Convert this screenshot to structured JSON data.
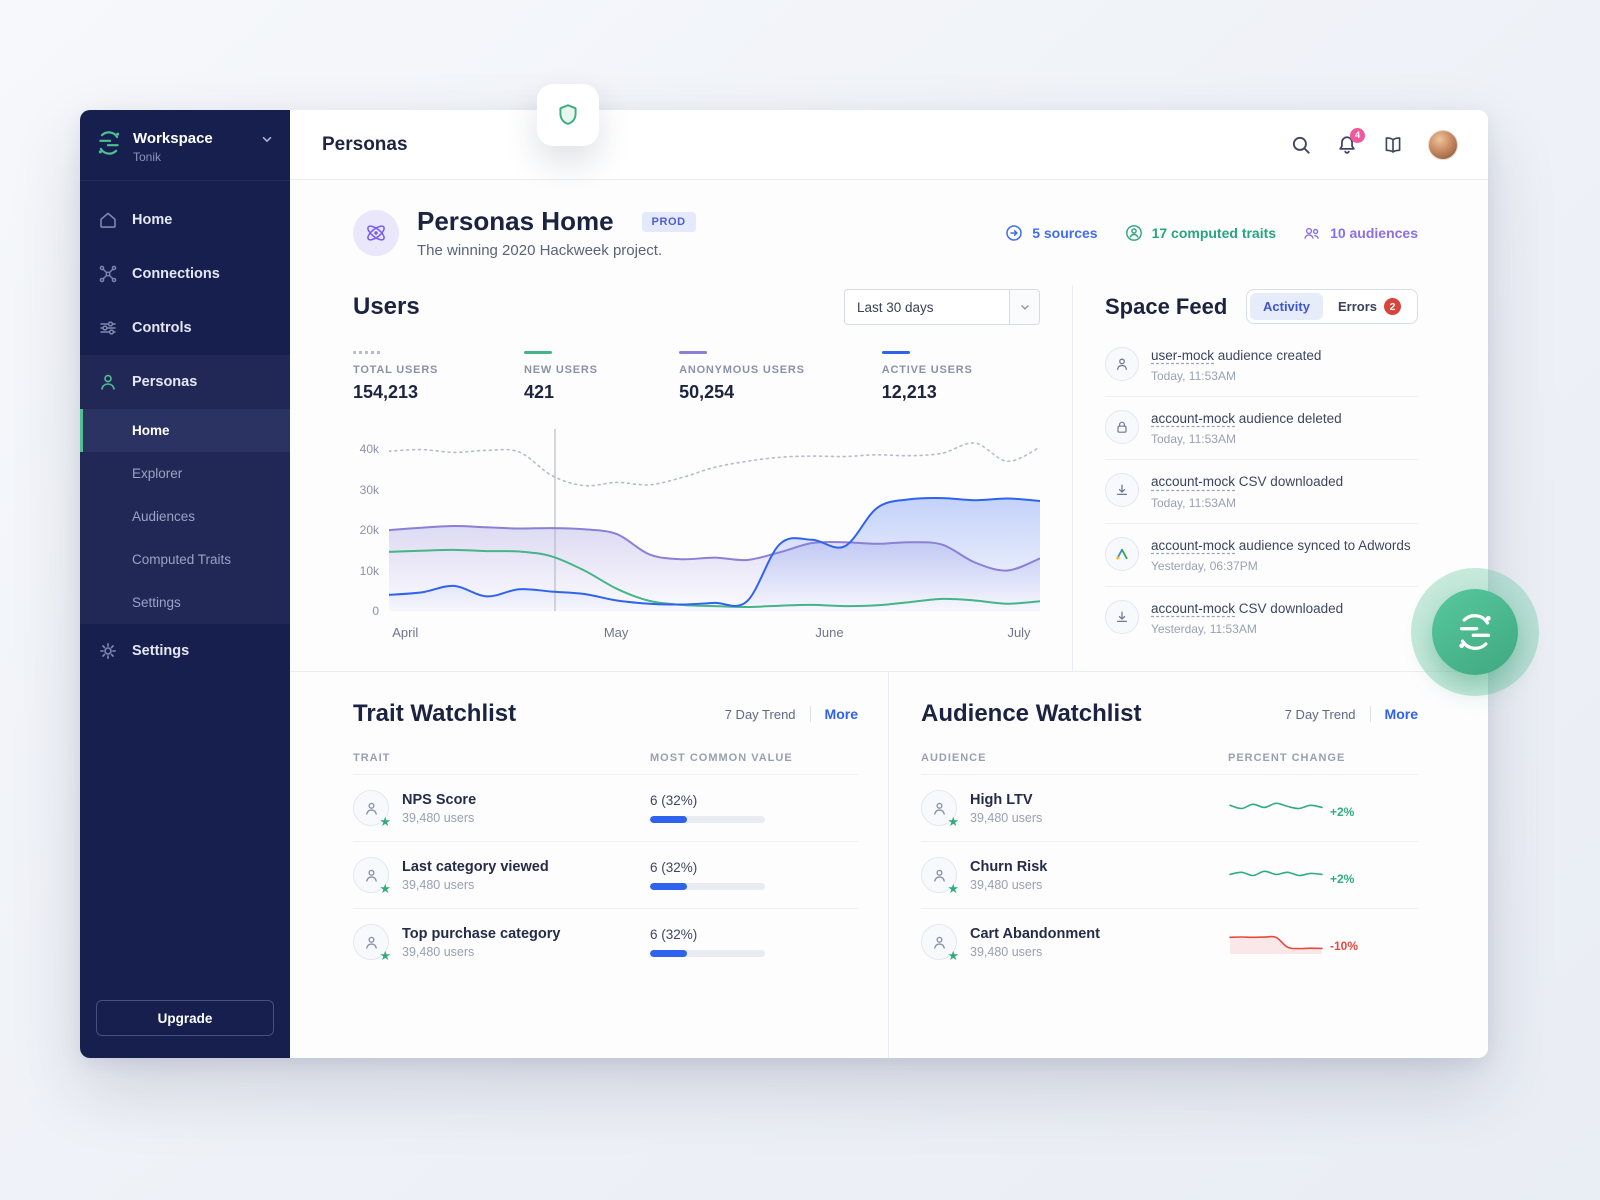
{
  "sidebar": {
    "workspace_label": "Workspace",
    "workspace_name": "Tonik",
    "nav": {
      "home": "Home",
      "connections": "Connections",
      "controls": "Controls",
      "personas": "Personas",
      "settings": "Settings"
    },
    "personas_children": {
      "home": "Home",
      "explorer": "Explorer",
      "audiences": "Audiences",
      "computed_traits": "Computed Traits",
      "settings": "Settings"
    },
    "upgrade_label": "Upgrade"
  },
  "topbar": {
    "title": "Personas",
    "notification_count": "4"
  },
  "header": {
    "title": "Personas Home",
    "env_badge": "PROD",
    "subtitle": "The winning 2020 Hackweek project.",
    "stats": [
      {
        "label": "5 sources",
        "color": "#3e6df5"
      },
      {
        "label": "17 computed traits",
        "color": "#27a57c"
      },
      {
        "label": "10 audiences",
        "color": "#8b6fe8"
      }
    ]
  },
  "users_section": {
    "title": "Users",
    "range": "Last 30 days",
    "legend": [
      {
        "label": "TOTAL USERS",
        "value": "154,213"
      },
      {
        "label": "NEW USERS",
        "value": "421"
      },
      {
        "label": "ANONYMOUS USERS",
        "value": "50,254"
      },
      {
        "label": "ACTIVE USERS",
        "value": "12,213"
      }
    ]
  },
  "chart_data": {
    "type": "line",
    "title": "Users",
    "range_selected": "Last 30 days",
    "ymax_k": 44,
    "cursor_percent": 25.5,
    "y_ticks_k": [
      [
        "40k",
        40
      ],
      [
        "30k",
        30
      ],
      [
        "20k",
        20
      ],
      [
        "10k",
        10
      ],
      [
        "0",
        0
      ]
    ],
    "x_ticks": [
      [
        "April",
        0.5
      ],
      [
        "May",
        33
      ],
      [
        "June",
        65.5
      ],
      [
        "July",
        95
      ]
    ],
    "series": [
      {
        "name": "Total users",
        "legend_value": "154,213",
        "color": "#b6bcc9",
        "dash": true,
        "fill": false,
        "values_k": [
          39.5,
          39.9,
          39.2,
          39.7,
          39.3,
          33.5,
          31.0,
          31.8,
          31.2,
          33.0,
          35.5,
          37.0,
          38.0,
          38.3,
          38.2,
          38.6,
          38.4,
          39.0,
          41.5,
          37.0,
          40.5
        ]
      },
      {
        "name": "New users",
        "legend_value": "421",
        "color": "#45b588",
        "dash": false,
        "fill": false,
        "values_k": [
          14.6,
          14.9,
          15.1,
          14.8,
          14.7,
          13.5,
          10.0,
          5.5,
          2.5,
          1.5,
          1.2,
          1.0,
          1.3,
          1.5,
          1.2,
          1.4,
          2.2,
          3.0,
          2.6,
          1.8,
          2.4
        ]
      },
      {
        "name": "Anonymous users",
        "legend_value": "50,254",
        "color": "#8b7fd7",
        "dash": false,
        "fill": true,
        "values_k": [
          20.0,
          20.6,
          21.0,
          20.7,
          20.4,
          20.5,
          20.2,
          19.0,
          14.0,
          12.8,
          13.2,
          12.6,
          14.5,
          16.8,
          17.0,
          16.6,
          17.0,
          16.4,
          12.0,
          10.0,
          13.0
        ]
      },
      {
        "name": "Active users",
        "legend_value": "12,213",
        "color": "#2f63ee",
        "dash": false,
        "fill": true,
        "values_k": [
          4.0,
          4.6,
          6.2,
          3.6,
          5.4,
          4.8,
          4.2,
          2.6,
          1.8,
          1.6,
          2.0,
          2.4,
          16.5,
          17.6,
          16.0,
          25.5,
          27.6,
          27.9,
          27.4,
          27.8,
          27.2
        ]
      }
    ]
  },
  "space_feed": {
    "title": "Space Feed",
    "tabs": [
      {
        "label": "Activity",
        "active": true
      },
      {
        "label": "Errors",
        "badge": "2"
      }
    ],
    "items": [
      {
        "icon": "user-icon",
        "link": "user-mock",
        "text": " audience created",
        "time": "Today, 11:53AM"
      },
      {
        "icon": "lock-icon",
        "link": "account-mock",
        "text": " audience deleted",
        "time": "Today, 11:53AM"
      },
      {
        "icon": "download-icon",
        "link": "account-mock",
        "text": " CSV downloaded",
        "time": "Today, 11:53AM"
      },
      {
        "icon": "adwords-icon",
        "link": "account-mock",
        "text": " audience synced to Adwords",
        "time": "Yesterday, 06:37PM"
      },
      {
        "icon": "download-icon",
        "link": "account-mock",
        "text": " CSV downloaded",
        "time": "Yesterday, 11:53AM"
      }
    ]
  },
  "trait_watchlist": {
    "title": "Trait Watchlist",
    "trend_label": "7 Day Trend",
    "more_label": "More",
    "col1": "TRAIT",
    "col2": "MOST COMMON VALUE",
    "rows": [
      {
        "name": "NPS Score",
        "users": "39,480 users",
        "value": "6 (32%)",
        "percent": 32
      },
      {
        "name": "Last category viewed",
        "users": "39,480 users",
        "value": "6 (32%)",
        "percent": 32
      },
      {
        "name": "Top purchase category",
        "users": "39,480 users",
        "value": "6 (32%)",
        "percent": 32
      }
    ]
  },
  "audience_watchlist": {
    "title": "Audience Watchlist",
    "trend_label": "7 Day Trend",
    "more_label": "More",
    "col1": "AUDIENCE",
    "col2": "PERCENT CHANGE",
    "rows": [
      {
        "name": "High LTV",
        "users": "39,480 users",
        "change": "+2%",
        "color": "#2fae7c",
        "fill": false,
        "spark": [
          13,
          10,
          14,
          11,
          15,
          12,
          10,
          13,
          11
        ]
      },
      {
        "name": "Churn Risk",
        "users": "39,480 users",
        "change": "+2%",
        "color": "#2fae7c",
        "fill": false,
        "spark": [
          11,
          13,
          10,
          14,
          11,
          13,
          10,
          12,
          11
        ]
      },
      {
        "name": "Cart Abandonment",
        "users": "39,480 users",
        "change": "-10%",
        "color": "#e8483f",
        "fill": true,
        "spark": [
          15,
          15.2,
          15,
          15.1,
          15,
          5.5,
          4.2,
          4.6,
          4.4
        ]
      }
    ]
  },
  "colors": {
    "brand_green": "#4fbf94",
    "accent_blue": "#2f63ee",
    "sidebar_navy": "#171f4e"
  }
}
